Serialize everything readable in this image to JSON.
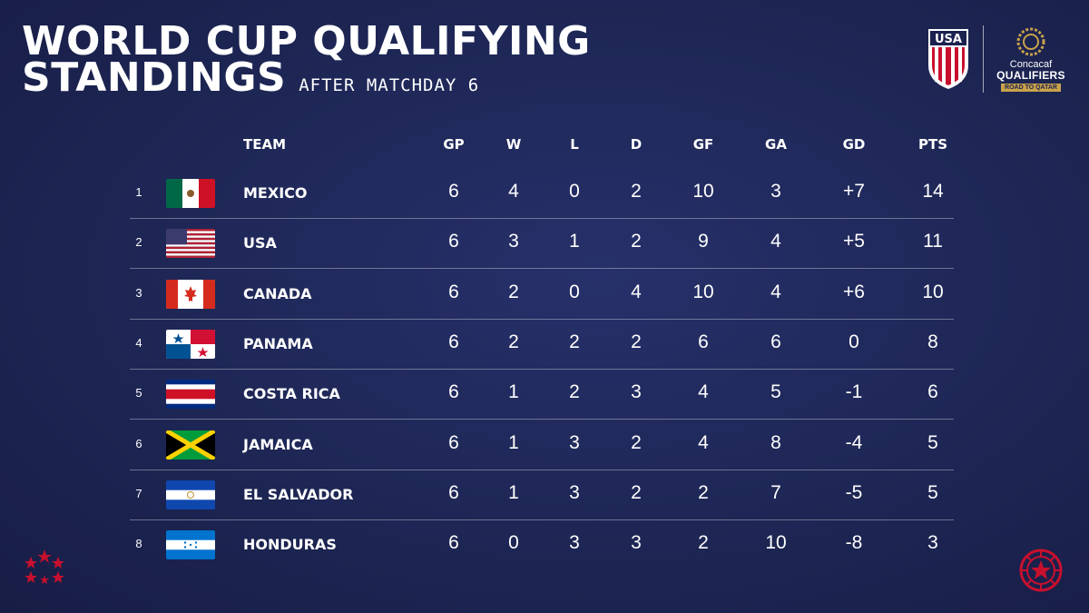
{
  "title": {
    "line1": "WORLD CUP QUALIFYING",
    "line2": "STANDINGS",
    "subtitle": "AFTER MATCHDAY 6"
  },
  "logos": {
    "ussf": "USA",
    "concacaf_line1": "Concacaf",
    "concacaf_line2": "QUALIFIERS",
    "concacaf_line3": "ROAD TO QATAR"
  },
  "columns": [
    "TEAM",
    "GP",
    "W",
    "L",
    "D",
    "GF",
    "GA",
    "GD",
    "PTS"
  ],
  "rows": [
    {
      "rank": "1",
      "team": "MEXICO",
      "flag": "mexico-flag",
      "gp": "6",
      "w": "4",
      "l": "0",
      "d": "2",
      "gf": "10",
      "ga": "3",
      "gd": "+7",
      "pts": "14"
    },
    {
      "rank": "2",
      "team": "USA",
      "flag": "usa-flag",
      "gp": "6",
      "w": "3",
      "l": "1",
      "d": "2",
      "gf": "9",
      "ga": "4",
      "gd": "+5",
      "pts": "11"
    },
    {
      "rank": "3",
      "team": "CANADA",
      "flag": "canada-flag",
      "gp": "6",
      "w": "2",
      "l": "0",
      "d": "4",
      "gf": "10",
      "ga": "4",
      "gd": "+6",
      "pts": "10"
    },
    {
      "rank": "4",
      "team": "PANAMA",
      "flag": "panama-flag",
      "gp": "6",
      "w": "2",
      "l": "2",
      "d": "2",
      "gf": "6",
      "ga": "6",
      "gd": "0",
      "pts": "8"
    },
    {
      "rank": "5",
      "team": "COSTA RICA",
      "flag": "costa-rica-flag",
      "gp": "6",
      "w": "1",
      "l": "2",
      "d": "3",
      "gf": "4",
      "ga": "5",
      "gd": "-1",
      "pts": "6"
    },
    {
      "rank": "6",
      "team": "JAMAICA",
      "flag": "jamaica-flag",
      "gp": "6",
      "w": "1",
      "l": "3",
      "d": "2",
      "gf": "4",
      "ga": "8",
      "gd": "-4",
      "pts": "5"
    },
    {
      "rank": "7",
      "team": "EL SALVADOR",
      "flag": "el-salvador-flag",
      "gp": "6",
      "w": "1",
      "l": "3",
      "d": "2",
      "gf": "2",
      "ga": "7",
      "gd": "-5",
      "pts": "5"
    },
    {
      "rank": "8",
      "team": "HONDURAS",
      "flag": "honduras-flag",
      "gp": "6",
      "w": "0",
      "l": "3",
      "d": "3",
      "gf": "2",
      "ga": "10",
      "gd": "-8",
      "pts": "3"
    }
  ],
  "colors": {
    "background": "#1f2858",
    "accent_red": "#c8102e",
    "gold": "#c9a24b"
  }
}
